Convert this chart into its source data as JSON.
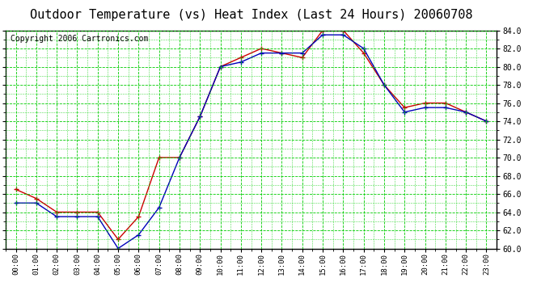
{
  "title": "Outdoor Temperature (vs) Heat Index (Last 24 Hours) 20060708",
  "copyright": "Copyright 2006 Cartronics.com",
  "hours": [
    "00:00",
    "01:00",
    "02:00",
    "03:00",
    "04:00",
    "05:00",
    "06:00",
    "07:00",
    "08:00",
    "09:00",
    "10:00",
    "11:00",
    "12:00",
    "13:00",
    "14:00",
    "15:00",
    "16:00",
    "17:00",
    "18:00",
    "19:00",
    "20:00",
    "21:00",
    "22:00",
    "23:00"
  ],
  "temp": [
    65.0,
    65.0,
    63.5,
    63.5,
    63.5,
    60.0,
    61.5,
    64.5,
    70.0,
    74.5,
    80.0,
    80.5,
    81.5,
    81.5,
    81.5,
    83.5,
    83.5,
    82.0,
    78.0,
    75.0,
    75.5,
    75.5,
    75.0,
    74.0
  ],
  "heat_index": [
    66.5,
    65.5,
    64.0,
    64.0,
    64.0,
    61.0,
    63.5,
    70.0,
    70.0,
    74.5,
    80.0,
    81.0,
    82.0,
    81.5,
    81.0,
    84.0,
    84.0,
    81.5,
    78.0,
    75.5,
    76.0,
    76.0,
    75.0,
    74.0
  ],
  "temp_color": "#0000bb",
  "heat_color": "#cc0000",
  "bg_color": "#ffffff",
  "plot_bg": "#ffffff",
  "grid_major_color": "#00cc00",
  "grid_minor_color": "#00cc00",
  "border_color": "#000000",
  "ymin": 60.0,
  "ymax": 84.0,
  "ytick_interval": 2.0,
  "title_fontsize": 11,
  "copyright_fontsize": 7
}
